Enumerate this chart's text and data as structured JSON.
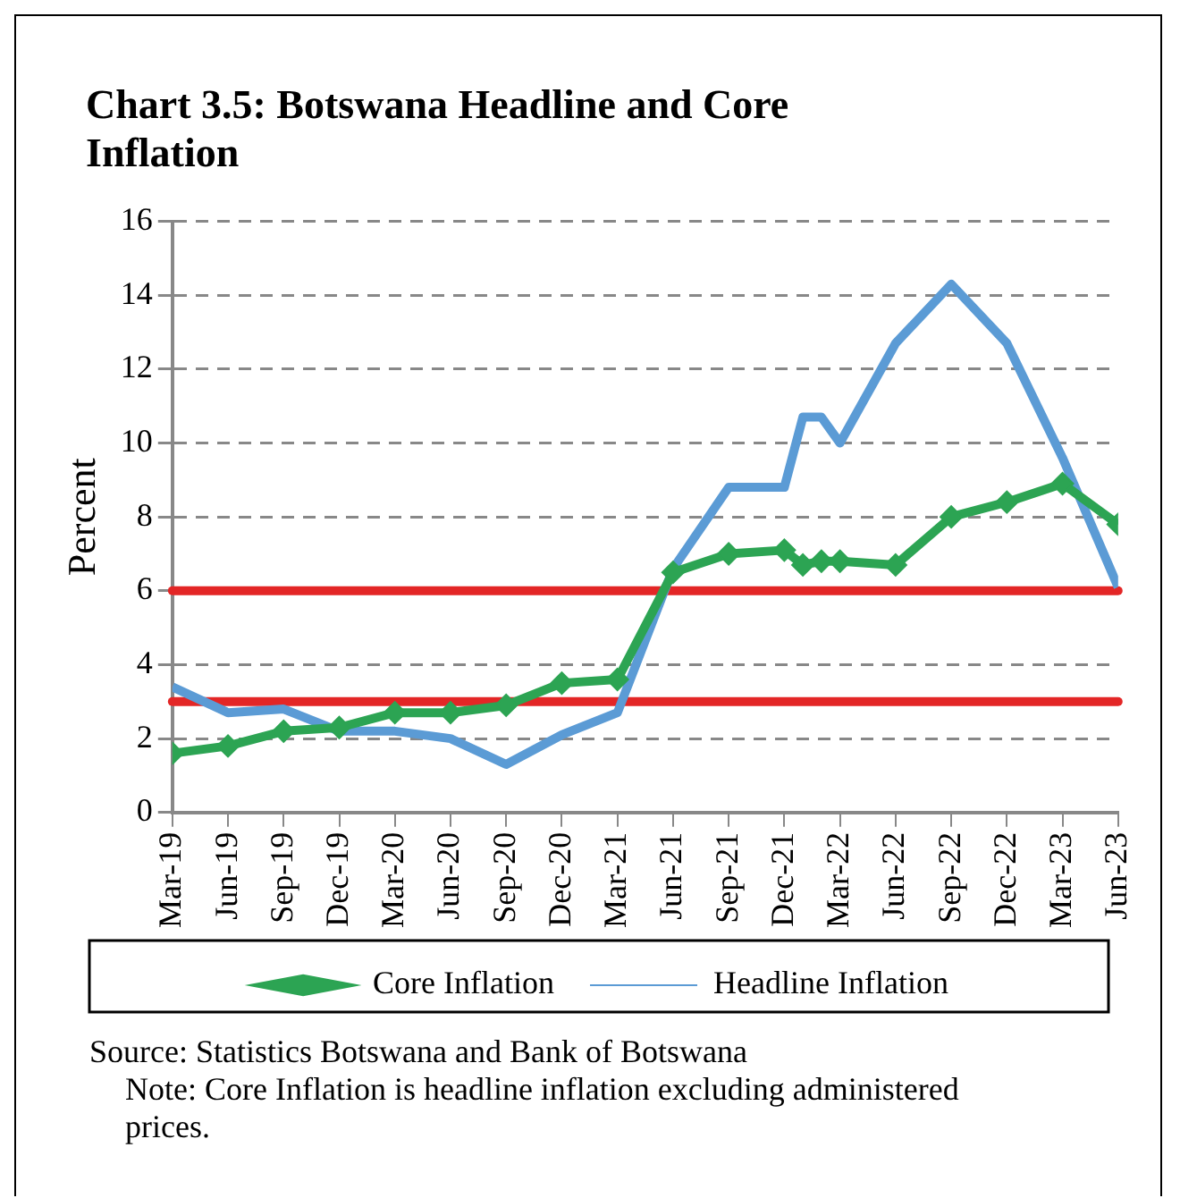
{
  "chart_data": {
    "type": "line",
    "title": "Chart 3.5: Botswana Headline and Core Inflation",
    "ylabel": "Percent",
    "xlim": [
      "2019-03",
      "2023-06"
    ],
    "xticks": [
      {
        "value": "2019-03",
        "label": "Mar-19"
      },
      {
        "value": "2019-06",
        "label": "Jun-19"
      },
      {
        "value": "2019-09",
        "label": "Sep-19"
      },
      {
        "value": "2019-12",
        "label": "Dec-19"
      },
      {
        "value": "2020-03",
        "label": "Mar-20"
      },
      {
        "value": "2020-06",
        "label": "Jun-20"
      },
      {
        "value": "2020-09",
        "label": "Sep-20"
      },
      {
        "value": "2020-12",
        "label": "Dec-20"
      },
      {
        "value": "2021-03",
        "label": "Mar-21"
      },
      {
        "value": "2021-06",
        "label": "Jun-21"
      },
      {
        "value": "2021-09",
        "label": "Sep-21"
      },
      {
        "value": "2021-12",
        "label": "Dec-21"
      },
      {
        "value": "2022-03",
        "label": "Mar-22"
      },
      {
        "value": "2022-06",
        "label": "Jun-22"
      },
      {
        "value": "2022-09",
        "label": "Sep-22"
      },
      {
        "value": "2022-12",
        "label": "Dec-22"
      },
      {
        "value": "2023-03",
        "label": "Mar-23"
      },
      {
        "value": "2023-06",
        "label": "Jun-23"
      }
    ],
    "x": [
      "2019-03",
      "2019-06",
      "2019-09",
      "2019-12",
      "2020-03",
      "2020-06",
      "2020-09",
      "2020-12",
      "2021-03",
      "2021-06",
      "2021-09",
      "2021-12",
      "2022-01",
      "2022-02",
      "2022-03",
      "2022-06",
      "2022-09",
      "2022-12",
      "2023-03",
      "2023-06"
    ],
    "ylim": [
      0,
      16
    ],
    "yticks": [
      0,
      2,
      4,
      6,
      8,
      10,
      12,
      14,
      16
    ],
    "grid": "y",
    "legend": "bottom",
    "series": [
      {
        "name": "Headline Inflation",
        "color": "#5b9bd5",
        "marker": "none",
        "values": [
          3.4,
          2.7,
          2.8,
          2.2,
          2.2,
          2.0,
          1.3,
          2.1,
          2.7,
          6.6,
          8.8,
          8.8,
          10.7,
          10.7,
          10.0,
          12.7,
          14.3,
          12.7,
          9.6,
          6.1
        ]
      },
      {
        "name": "Core Inflation",
        "color": "#2ca453",
        "marker": "diamond",
        "values": [
          1.6,
          1.8,
          2.2,
          2.3,
          2.7,
          2.7,
          2.9,
          3.5,
          3.6,
          6.5,
          7.0,
          7.1,
          6.7,
          6.8,
          6.8,
          6.7,
          8.0,
          8.4,
          8.9,
          7.8
        ]
      }
    ],
    "ref_lines": [
      {
        "axis": "y",
        "value": 3,
        "color": "#e32626"
      },
      {
        "axis": "y",
        "value": 6,
        "color": "#e32626"
      }
    ],
    "annotations": [
      "Source: Statistics Botswana and Bank of Botswana",
      "Note: Core Inflation is headline inflation excluding administered prices."
    ]
  }
}
